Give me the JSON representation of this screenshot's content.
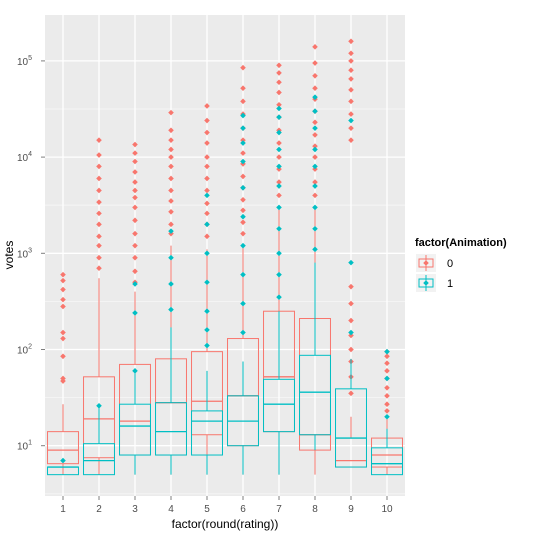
{
  "chart_data": {
    "type": "boxplot",
    "title": "",
    "xlabel": "factor(round(rating))",
    "ylabel": "votes",
    "y_scale": "log10",
    "y_range": [
      3,
      300000
    ],
    "y_ticks": [
      {
        "value": 10,
        "base": "10",
        "exp": "1"
      },
      {
        "value": 100,
        "base": "10",
        "exp": "2"
      },
      {
        "value": 1000,
        "base": "10",
        "exp": "3"
      },
      {
        "value": 10000,
        "base": "10",
        "exp": "4"
      },
      {
        "value": 100000,
        "base": "10",
        "exp": "5"
      }
    ],
    "categories": [
      "1",
      "2",
      "3",
      "4",
      "5",
      "6",
      "7",
      "8",
      "9",
      "10"
    ],
    "grid": true,
    "legend_position": "right",
    "legend": {
      "title": "factor(Animation)",
      "entries": [
        "0",
        "1"
      ]
    },
    "colors": {
      "0": "#F8766D",
      "1": "#00BFC4",
      "panel": "#EBEBEB",
      "grid_major": "#FFFFFF",
      "grid_minor": "#F5F5F5"
    },
    "series": [
      {
        "name": "0",
        "boxes": [
          {
            "category": "1",
            "whisker_low": 5,
            "q1": 6.5,
            "median": 9,
            "q3": 14,
            "whisker_high": 27,
            "outliers": [
              47,
              50,
              85,
              130,
              150,
              280,
              330,
              420,
              520,
              600
            ]
          },
          {
            "category": "2",
            "whisker_low": 5,
            "q1": 7.5,
            "median": 19,
            "q3": 52,
            "whisker_high": 550,
            "outliers": [
              700,
              900,
              1200,
              1500,
              2000,
              2600,
              3400,
              4500,
              6000,
              8000,
              10500,
              15000
            ]
          },
          {
            "category": "3",
            "whisker_low": 5,
            "q1": 8,
            "median": 18,
            "q3": 70,
            "whisker_high": 400,
            "outliers": [
              500,
              650,
              900,
              1200,
              1600,
              2200,
              3000,
              3800,
              4500,
              5500,
              7000,
              9000,
              11000,
              13500
            ]
          },
          {
            "category": "4",
            "whisker_low": 5,
            "q1": 8,
            "median": 28,
            "q3": 80,
            "whisker_high": 1200,
            "outliers": [
              1600,
              2000,
              2700,
              3500,
              4500,
              6000,
              8000,
              10000,
              12000,
              15000,
              19000,
              29000
            ]
          },
          {
            "category": "5",
            "whisker_low": 5,
            "q1": 13,
            "median": 29,
            "q3": 95,
            "whisker_high": 1100,
            "outliers": [
              1500,
              2000,
              2600,
              3300,
              4500,
              6000,
              8000,
              10000,
              14000,
              18000,
              24000,
              34000
            ]
          },
          {
            "category": "6",
            "whisker_low": 5,
            "q1": 10,
            "median": 33,
            "q3": 130,
            "whisker_high": 1200,
            "outliers": [
              1600,
              2100,
              2800,
              3600,
              4800,
              6300,
              8500,
              11000,
              15000,
              20000,
              28000,
              38000,
              52000,
              85000
            ]
          },
          {
            "category": "7",
            "whisker_low": 5,
            "q1": 14,
            "median": 52,
            "q3": 250,
            "whisker_high": 3000,
            "outliers": [
              4000,
              5500,
              7500,
              10000,
              14000,
              19000,
              26000,
              35000,
              47000,
              60000,
              75000,
              90000
            ]
          },
          {
            "category": "8",
            "whisker_low": 5,
            "q1": 9,
            "median": 13,
            "q3": 210,
            "whisker_high": 3000,
            "outliers": [
              4000,
              5500,
              7500,
              10000,
              13000,
              17000,
              23000,
              30000,
              40000,
              52000,
              70000,
              95000,
              140000
            ]
          },
          {
            "category": "9",
            "whisker_low": 6,
            "q1": 6,
            "median": 7,
            "q3": 12,
            "whisker_high": 20,
            "outliers": [
              35,
              52,
              75,
              100,
              140,
              200,
              300,
              450,
              15000,
              20000,
              28000,
              38000,
              50000,
              65000,
              80000,
              100000,
              120000,
              160000
            ]
          },
          {
            "category": "10",
            "whisker_low": 5,
            "q1": 6,
            "median": 8,
            "q3": 12,
            "whisker_high": 20,
            "outliers": [
              23,
              27,
              33,
              40,
              50,
              60,
              72,
              85,
              95
            ]
          }
        ]
      },
      {
        "name": "1",
        "boxes": [
          {
            "category": "1",
            "whisker_low": 5,
            "q1": 5,
            "median": 6,
            "q3": 6,
            "whisker_high": 6,
            "outliers": [
              7
            ]
          },
          {
            "category": "2",
            "whisker_low": 5,
            "q1": 5,
            "median": 7,
            "q3": 10.5,
            "whisker_high": 26,
            "outliers": [
              26
            ]
          },
          {
            "category": "3",
            "whisker_low": 5,
            "q1": 8,
            "median": 16,
            "q3": 27,
            "whisker_high": 60,
            "outliers": [
              60,
              240,
              480
            ]
          },
          {
            "category": "4",
            "whisker_low": 5,
            "q1": 8,
            "median": 14,
            "q3": 28,
            "whisker_high": 170,
            "outliers": [
              260,
              480,
              900,
              1700
            ]
          },
          {
            "category": "5",
            "whisker_low": 5,
            "q1": 8,
            "median": 18,
            "q3": 23,
            "whisker_high": 60,
            "outliers": [
              110,
              160,
              250,
              500,
              1000,
              2000,
              4000
            ]
          },
          {
            "category": "6",
            "whisker_low": 5,
            "q1": 10,
            "median": 18,
            "q3": 33,
            "whisker_high": 75,
            "outliers": [
              150,
              300,
              600,
              1200,
              2400,
              4800,
              9000,
              14000,
              20000,
              27000
            ]
          },
          {
            "category": "7",
            "whisker_low": 5,
            "q1": 14,
            "median": 27,
            "q3": 49,
            "whisker_high": 250,
            "outliers": [
              350,
              600,
              1000,
              1800,
              3000,
              5000,
              8000,
              12000,
              18000,
              26000,
              32000
            ]
          },
          {
            "category": "8",
            "whisker_low": 9,
            "q1": 13,
            "median": 36,
            "q3": 87,
            "whisker_high": 800,
            "outliers": [
              1100,
              1800,
              3000,
              5000,
              8000,
              12000,
              20000,
              30000,
              42000
            ]
          },
          {
            "category": "9",
            "whisker_low": 6,
            "q1": 6,
            "median": 12,
            "q3": 39,
            "whisker_high": 80,
            "outliers": [
              150,
              800,
              24000
            ]
          },
          {
            "category": "10",
            "whisker_low": 5,
            "q1": 5,
            "median": 6.5,
            "q3": 9.5,
            "whisker_high": 15,
            "outliers": [
              20,
              50,
              95
            ]
          }
        ]
      }
    ]
  }
}
